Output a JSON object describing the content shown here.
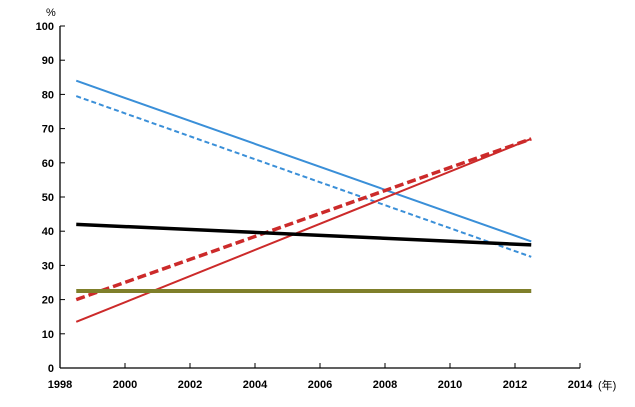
{
  "chart_data": {
    "type": "line",
    "title": "",
    "xlabel": "(年)",
    "ylabel": "%",
    "xlim": [
      1998,
      2014
    ],
    "ylim": [
      0,
      100
    ],
    "x_ticks": [
      1998,
      2000,
      2002,
      2004,
      2006,
      2008,
      2010,
      2012,
      2014
    ],
    "y_ticks": [
      0,
      10,
      20,
      30,
      40,
      50,
      60,
      70,
      80,
      90,
      100
    ],
    "grid": false,
    "legend": "none",
    "series": [
      {
        "x": [
          1998.5,
          2012.5
        ],
        "y": [
          84,
          37
        ],
        "color": "#3a8fd8",
        "dash": "solid",
        "width": 2
      },
      {
        "x": [
          1998.5,
          2012.5
        ],
        "y": [
          79.5,
          32.5
        ],
        "color": "#3a8fd8",
        "dash": "dashed",
        "width": 2
      },
      {
        "x": [
          1998.5,
          2012.5
        ],
        "y": [
          13.5,
          67
        ],
        "color": "#cc2a2a",
        "dash": "solid",
        "width": 2
      },
      {
        "x": [
          1998.5,
          2012.5
        ],
        "y": [
          20,
          67
        ],
        "color": "#cc2a2a",
        "dash": "dashed",
        "width": 3.5
      },
      {
        "x": [
          1998.5,
          2012.5
        ],
        "y": [
          42,
          36
        ],
        "color": "#000000",
        "dash": "solid",
        "width": 3.5
      },
      {
        "x": [
          1998.5,
          2012.5
        ],
        "y": [
          22.5,
          22.5
        ],
        "color": "#7f7f2a",
        "dash": "solid",
        "width": 4
      }
    ]
  }
}
